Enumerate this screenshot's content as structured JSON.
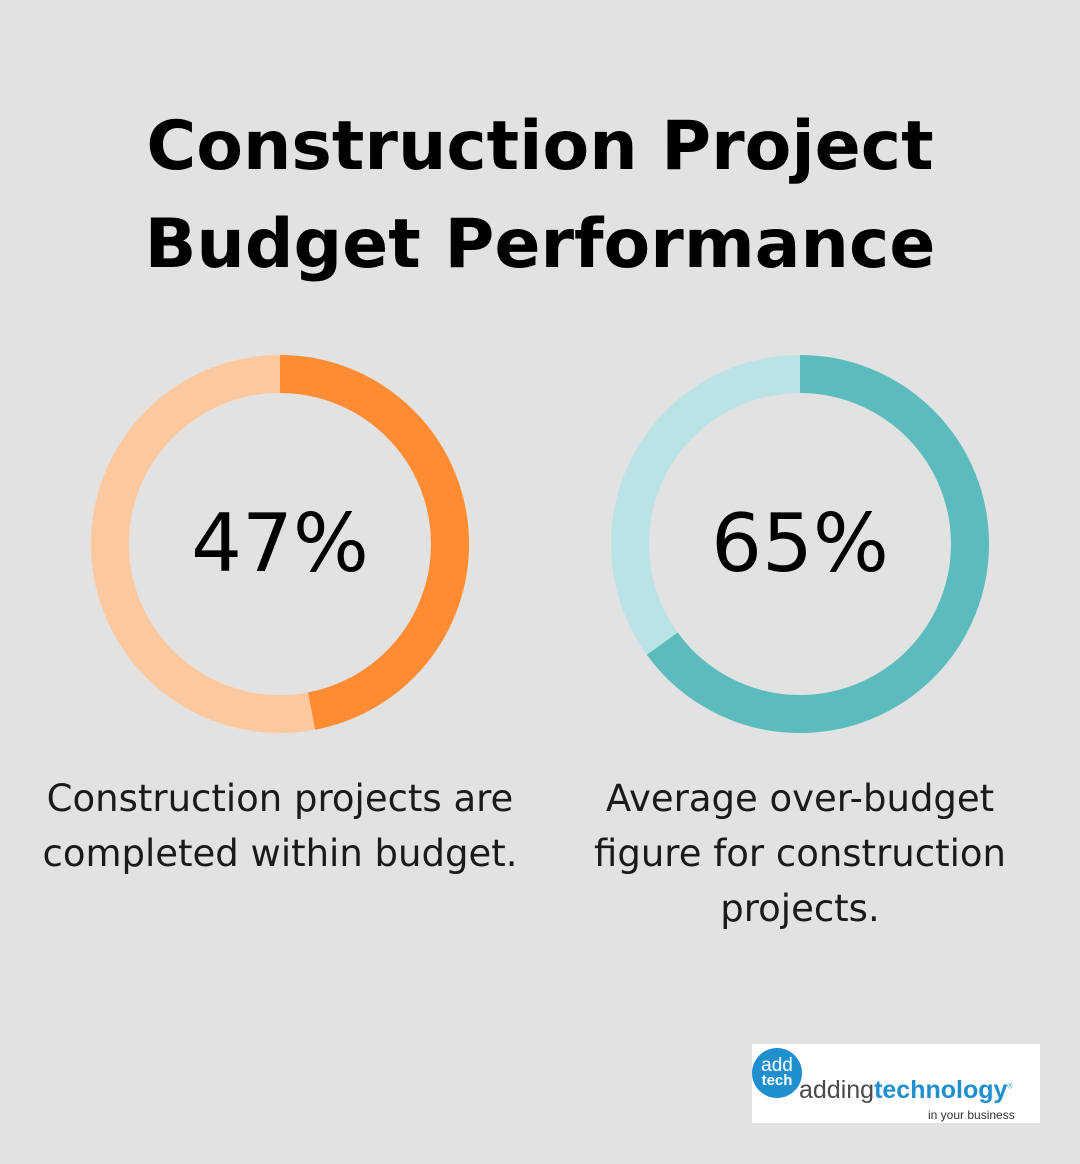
{
  "title": {
    "line1": "Construction Project",
    "line2": "Budget Performance"
  },
  "chart_data": [
    {
      "type": "pie",
      "value": 47,
      "value_label": "47%",
      "caption": "Construction projects are completed within budget.",
      "colors": {
        "filled": "#ff8c33",
        "remaining": "#fec89e"
      }
    },
    {
      "type": "pie",
      "value": 65,
      "value_label": "65%",
      "caption": "Average over-budget figure for construction projects.",
      "colors": {
        "filled": "#5bbbbe",
        "remaining": "#b9e3e5"
      }
    }
  ],
  "logo": {
    "circle_line1": "add",
    "circle_line2": "tech",
    "name_part1": "adding",
    "name_part2": "technology",
    "trademark": "®",
    "tagline": "in your business"
  }
}
